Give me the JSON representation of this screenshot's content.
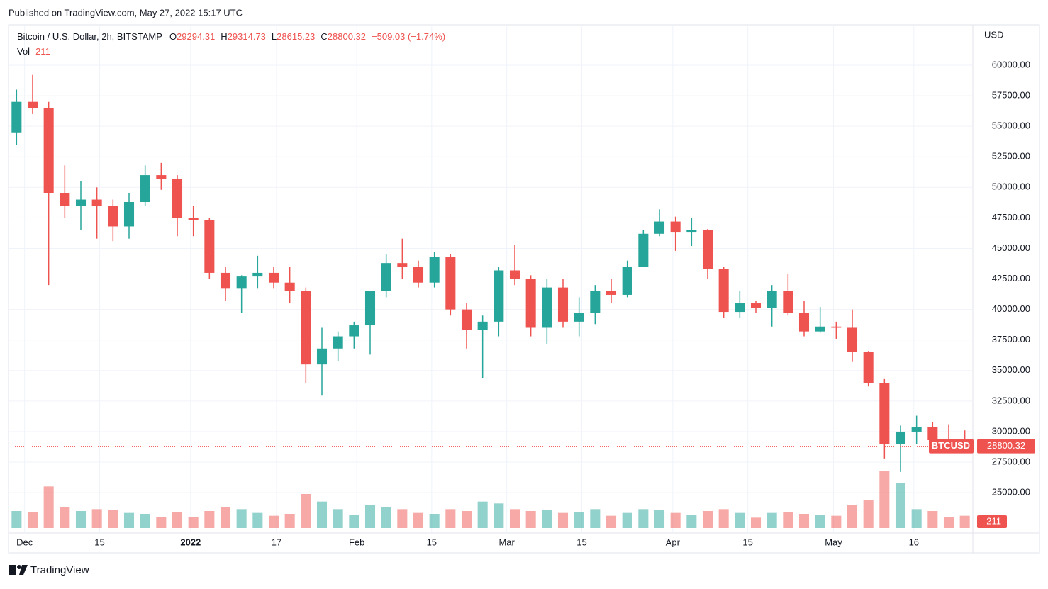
{
  "published": "Published on TradingView.com, May 27, 2022 15:17 UTC",
  "brand": "TradingView",
  "chart_data": {
    "type": "candlestick",
    "title": "Bitcoin / U.S. Dollar, 2h, BITSTAMP",
    "legend": {
      "open_label": "O",
      "open": 29294.31,
      "high_label": "H",
      "high": 29314.73,
      "low_label": "L",
      "low": 28615.23,
      "close_label": "C",
      "close": 28800.32,
      "change": "−509.03 (−1.74%)",
      "volume_label": "Vol",
      "volume": 211
    },
    "y_axis_label": "USD",
    "up_color": "#26a69a",
    "down_color": "#ef5350",
    "grid": true,
    "open": [
      54500,
      57000,
      56500,
      49500,
      48500,
      49000,
      48500,
      46800,
      48800,
      51000,
      50700,
      47500,
      47300,
      43000,
      41700,
      42700,
      43000,
      42200,
      41500,
      35500,
      36800,
      37800,
      38700,
      41500,
      43800,
      43500,
      42200,
      44300,
      40000,
      38300,
      39000,
      43200,
      42500,
      38500,
      41800,
      39000,
      39700,
      41500,
      41200,
      43500,
      46200,
      47200,
      46300,
      46500,
      43300,
      39800,
      40500,
      40100,
      41500,
      39700,
      38200,
      38600,
      38500,
      36500,
      34000,
      29000,
      30000,
      30400,
      29300,
      29100
    ],
    "high": [
      58000,
      59200,
      57000,
      51800,
      50500,
      50000,
      49000,
      49500,
      51800,
      52000,
      51000,
      48500,
      47500,
      43500,
      42800,
      44400,
      43500,
      43500,
      41800,
      38500,
      38200,
      39000,
      41500,
      44500,
      45800,
      44000,
      44700,
      44500,
      40500,
      39500,
      43500,
      45300,
      42800,
      42500,
      42500,
      41000,
      42000,
      42500,
      44000,
      46500,
      48200,
      47600,
      47500,
      46600,
      43500,
      41500,
      40700,
      42000,
      42900,
      40700,
      40200,
      39000,
      40000,
      36600,
      34300,
      30500,
      31300,
      30800,
      30600,
      30100
    ],
    "low": [
      53500,
      56000,
      42000,
      47500,
      46500,
      45800,
      45600,
      45800,
      48500,
      49800,
      46000,
      46000,
      42500,
      40700,
      39700,
      41700,
      41700,
      40500,
      34000,
      33000,
      35800,
      36800,
      36300,
      41000,
      42500,
      41800,
      41800,
      39500,
      36800,
      34400,
      37800,
      42000,
      37800,
      37200,
      38500,
      37800,
      38800,
      40500,
      41000,
      43500,
      46000,
      44800,
      45200,
      42500,
      39300,
      39300,
      39700,
      38600,
      39500,
      37800,
      38100,
      37600,
      35700,
      33700,
      27800,
      26700,
      29000,
      28700,
      28900,
      28300
    ],
    "close": [
      57000,
      56500,
      49500,
      48500,
      49000,
      48500,
      46800,
      48800,
      51000,
      50700,
      47500,
      47300,
      43000,
      41700,
      42700,
      43000,
      42200,
      41500,
      35500,
      36800,
      37800,
      38700,
      41500,
      43800,
      43500,
      42200,
      44300,
      40000,
      38300,
      39000,
      43200,
      42500,
      38500,
      41800,
      39000,
      39700,
      41500,
      41200,
      43500,
      46200,
      47200,
      46300,
      46500,
      43300,
      39800,
      40500,
      40100,
      41500,
      39700,
      38200,
      38600,
      38500,
      36500,
      34000,
      29000,
      30000,
      30400,
      29300,
      29100,
      28800
    ],
    "volumes": [
      9000,
      8500,
      22000,
      11000,
      9000,
      10000,
      9500,
      8000,
      7500,
      6000,
      8500,
      6000,
      9000,
      11000,
      10000,
      8000,
      6500,
      7500,
      18000,
      14000,
      10000,
      7000,
      12000,
      11000,
      10000,
      8000,
      7500,
      10000,
      9000,
      14000,
      13000,
      10000,
      9000,
      9500,
      8000,
      8500,
      10000,
      6500,
      8000,
      10000,
      9500,
      8000,
      7000,
      9000,
      10000,
      8000,
      5500,
      8000,
      8500,
      7500,
      7000,
      6500,
      12000,
      15000,
      30000,
      24000,
      10000,
      9000,
      6000,
      6500
    ],
    "vlim": [
      0,
      60000
    ],
    "xlim": [
      0,
      60
    ],
    "xticks": [
      {
        "value": 1,
        "label": "Dec"
      },
      {
        "value": 5.67,
        "label": "15"
      },
      {
        "value": 11.33,
        "label": "2022"
      },
      {
        "value": 16.67,
        "label": "17"
      },
      {
        "value": 21.67,
        "label": "Feb"
      },
      {
        "value": 26.33,
        "label": "15"
      },
      {
        "value": 31,
        "label": "Mar"
      },
      {
        "value": 35.67,
        "label": "15"
      },
      {
        "value": 41.33,
        "label": "Apr"
      },
      {
        "value": 46,
        "label": "15"
      },
      {
        "value": 51.33,
        "label": "May"
      },
      {
        "value": 56.33,
        "label": "16"
      }
    ],
    "ylim": [
      22000,
      63000
    ],
    "yticks": [
      {
        "value": 25000,
        "label": "25000.00"
      },
      {
        "value": 27500,
        "label": "27500.00"
      },
      {
        "value": 30000,
        "label": "30000.00"
      },
      {
        "value": 32500,
        "label": "32500.00"
      },
      {
        "value": 35000,
        "label": "35000.00"
      },
      {
        "value": 37500,
        "label": "37500.00"
      },
      {
        "value": 40000,
        "label": "40000.00"
      },
      {
        "value": 42500,
        "label": "42500.00"
      },
      {
        "value": 45000,
        "label": "45000.00"
      },
      {
        "value": 47500,
        "label": "47500.00"
      },
      {
        "value": 50000,
        "label": "50000.00"
      },
      {
        "value": 52500,
        "label": "52500.00"
      },
      {
        "value": 55000,
        "label": "55000.00"
      },
      {
        "value": 57500,
        "label": "57500.00"
      },
      {
        "value": 60000,
        "label": "60000.00"
      }
    ],
    "symbol": "BTCUSD",
    "last_price": 28800.32,
    "last_volume": 211
  }
}
